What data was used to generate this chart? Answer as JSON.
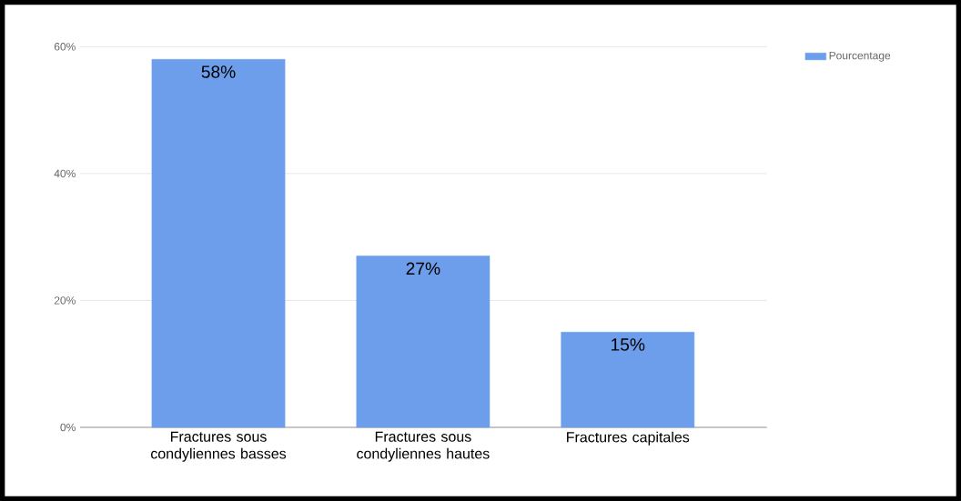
{
  "chart_data": {
    "type": "bar",
    "categories": [
      "Fractures sous condyliennes basses",
      "Fractures sous condyliennes hautes",
      "Fractures capitales"
    ],
    "series": [
      {
        "name": "Pourcentage",
        "color": "#6d9eeb",
        "values": [
          58,
          27,
          15
        ],
        "value_labels": [
          "58%",
          "27%",
          "15%"
        ]
      }
    ],
    "ylim": [
      0,
      60
    ],
    "yticks": [
      {
        "value": 0,
        "label": "0%"
      },
      {
        "value": 20,
        "label": "20%"
      },
      {
        "value": 40,
        "label": "40%"
      },
      {
        "value": 60,
        "label": "60%"
      }
    ],
    "grid": "y",
    "legend": "top right"
  }
}
